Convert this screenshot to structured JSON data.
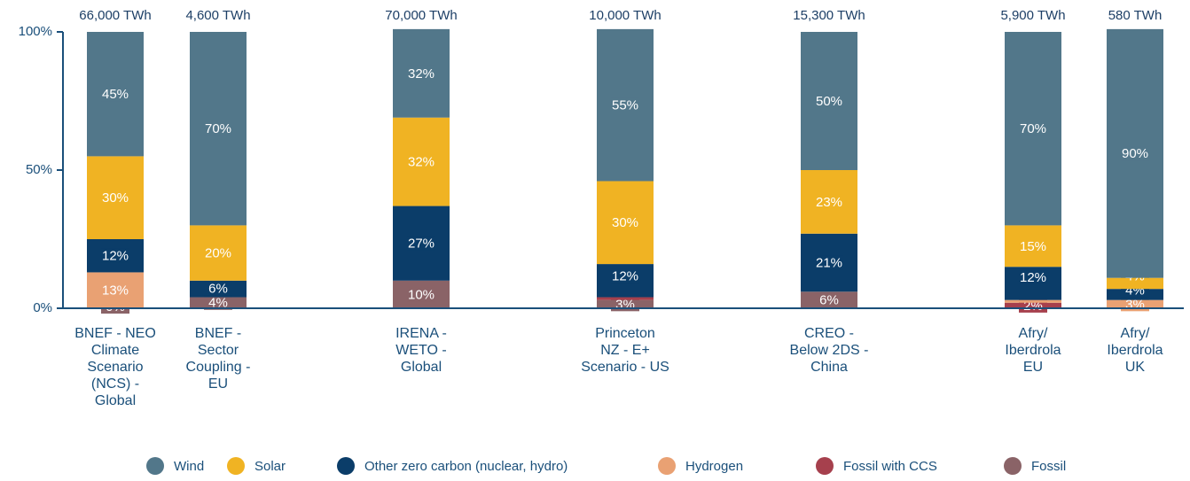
{
  "chart_data": {
    "type": "stacked_bar",
    "categories": [
      "BNEF - NEO\nClimate\nScenario\n(NCS) -\nGlobal",
      "BNEF -\nSector\nCoupling -\nEU",
      "IRENA -\nWETO -\nGlobal",
      "Princeton\nNZ - E+\nScenario - US",
      "CREO -\nBelow 2DS -\nChina",
      "Afry/\nIberdrola\nEU",
      "Afry/\nIberdrola\nUK"
    ],
    "top_labels": [
      "66,000 TWh",
      "4,600 TWh",
      "70,000 TWh",
      "10,000 TWh",
      "15,300 TWh",
      "5,900 TWh",
      "580 TWh"
    ],
    "series": [
      {
        "name": "Fossil",
        "color": "#8a6367",
        "values": [
          0,
          4,
          10,
          3,
          6,
          null,
          null
        ],
        "value_labels": [
          "0%",
          "4%",
          "10%",
          "3%",
          "6%",
          null,
          null
        ]
      },
      {
        "name": "Fossil with CCS",
        "color": "#a6404d",
        "values": [
          null,
          null,
          null,
          1,
          null,
          2,
          null
        ],
        "value_labels": [
          null,
          null,
          null,
          "1%",
          null,
          "2%",
          null
        ]
      },
      {
        "name": "Hydrogen",
        "color": "#e9a173",
        "values": [
          13,
          null,
          null,
          null,
          null,
          1,
          3
        ],
        "value_labels": [
          "13%",
          null,
          null,
          null,
          null,
          "1%",
          "3%"
        ]
      },
      {
        "name": "Other zero carbon (nuclear, hydro)",
        "color": "#0b3d69",
        "values": [
          12,
          6,
          27,
          12,
          21,
          12,
          4
        ],
        "value_labels": [
          "12%",
          "6%",
          "27%",
          "12%",
          "21%",
          "12%",
          "4%"
        ]
      },
      {
        "name": "Solar",
        "color": "#f0b323",
        "values": [
          30,
          20,
          32,
          30,
          23,
          15,
          4
        ],
        "value_labels": [
          "30%",
          "20%",
          "32%",
          "30%",
          "23%",
          "15%",
          "4%"
        ]
      },
      {
        "name": "Wind",
        "color": "#52778a",
        "values": [
          45,
          70,
          32,
          55,
          50,
          70,
          90
        ],
        "value_labels": [
          "45%",
          "70%",
          "32%",
          "55%",
          "50%",
          "70%",
          "90%"
        ]
      }
    ],
    "legend_order": [
      "Wind",
      "Solar",
      "Other zero carbon (nuclear, hydro)",
      "Hydrogen",
      "Fossil with CCS",
      "Fossil"
    ],
    "ylim": [
      0,
      100
    ],
    "yticks": [
      {
        "value": 0,
        "label": "0%"
      },
      {
        "value": 50,
        "label": "50%"
      },
      {
        "value": 100,
        "label": "100%"
      }
    ]
  }
}
